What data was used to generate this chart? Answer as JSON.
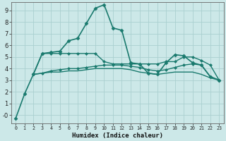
{
  "xlabel": "Humidex (Indice chaleur)",
  "background_color": "#cce8e8",
  "grid_color": "#aad0d0",
  "line_color": "#1a7a6e",
  "xlim": [
    -0.5,
    23.5
  ],
  "ylim": [
    -0.7,
    9.7
  ],
  "xticks": [
    0,
    1,
    2,
    3,
    4,
    5,
    6,
    7,
    8,
    9,
    10,
    11,
    12,
    13,
    14,
    15,
    16,
    17,
    18,
    19,
    20,
    21,
    22,
    23
  ],
  "yticks": [
    0,
    1,
    2,
    3,
    4,
    5,
    6,
    7,
    8,
    9
  ],
  "lines": [
    {
      "x": [
        0,
        1,
        2,
        3,
        4,
        5,
        6,
        7,
        8,
        9,
        10,
        11,
        12,
        13,
        14,
        15,
        16,
        17,
        18,
        19,
        20,
        21,
        22,
        23
      ],
      "y": [
        -0.3,
        1.8,
        3.5,
        5.3,
        5.4,
        5.5,
        6.4,
        6.6,
        7.9,
        9.2,
        9.5,
        7.5,
        7.3,
        4.5,
        4.4,
        3.6,
        3.5,
        4.5,
        5.2,
        5.1,
        4.5,
        4.3,
        3.3,
        3.0
      ],
      "marker": "D",
      "markersize": 2.5,
      "linewidth": 1.2
    },
    {
      "x": [
        2,
        3,
        4,
        5,
        6,
        7,
        8,
        9,
        10,
        11,
        12,
        13,
        14,
        15,
        16,
        17,
        18,
        19,
        20,
        21,
        22,
        23
      ],
      "y": [
        3.5,
        5.3,
        5.3,
        5.3,
        5.3,
        5.3,
        5.3,
        5.3,
        4.6,
        4.4,
        4.4,
        4.4,
        4.4,
        4.4,
        4.4,
        4.6,
        4.6,
        5.0,
        5.0,
        4.7,
        4.3,
        3.0
      ],
      "marker": "D",
      "markersize": 2.0,
      "linewidth": 1.0
    },
    {
      "x": [
        2,
        3,
        4,
        5,
        6,
        7,
        8,
        9,
        10,
        11,
        12,
        13,
        14,
        15,
        16,
        17,
        18,
        19,
        20,
        21,
        22,
        23
      ],
      "y": [
        3.5,
        3.6,
        3.8,
        3.9,
        4.0,
        4.0,
        4.1,
        4.2,
        4.3,
        4.3,
        4.3,
        4.2,
        4.1,
        3.9,
        3.8,
        3.9,
        4.1,
        4.3,
        4.4,
        4.3,
        3.3,
        3.0
      ],
      "marker": "D",
      "markersize": 2.0,
      "linewidth": 1.0
    },
    {
      "x": [
        2,
        3,
        4,
        5,
        6,
        7,
        8,
        9,
        10,
        11,
        12,
        13,
        14,
        15,
        16,
        17,
        18,
        19,
        20,
        21,
        22,
        23
      ],
      "y": [
        3.5,
        3.6,
        3.7,
        3.7,
        3.8,
        3.8,
        3.9,
        4.0,
        4.0,
        4.0,
        4.0,
        3.9,
        3.7,
        3.6,
        3.5,
        3.6,
        3.7,
        3.7,
        3.7,
        3.5,
        3.2,
        3.0
      ],
      "marker": null,
      "linewidth": 1.0
    }
  ]
}
